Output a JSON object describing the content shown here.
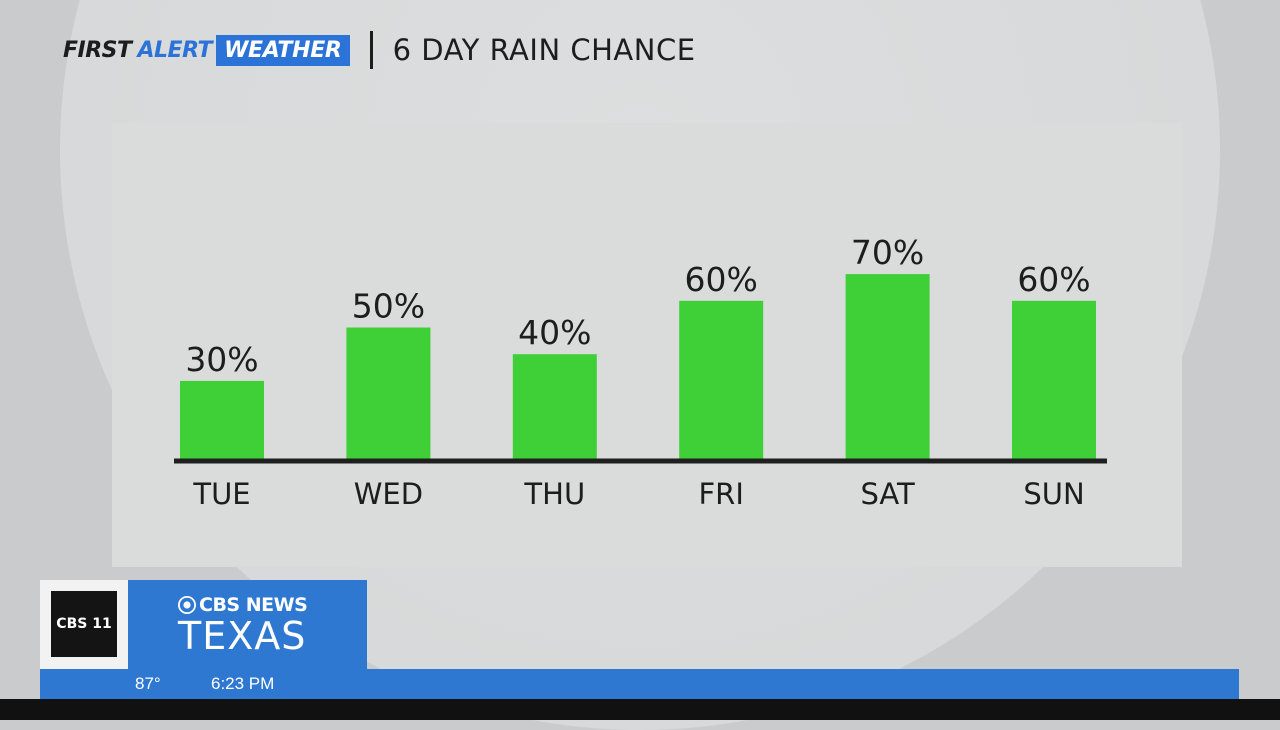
{
  "header": {
    "brand_first": "FIRST",
    "brand_alert": "ALERT",
    "brand_weather": "WEATHER",
    "title": "6 DAY RAIN CHANCE"
  },
  "colors": {
    "bar": "#3fcf36",
    "axis": "#1f1f1f",
    "text": "#1d1d1d",
    "brand_blue": "#2b73d6",
    "ticker_blue": "#2e78d2"
  },
  "chart_data": {
    "type": "bar",
    "title": "6 DAY RAIN CHANCE",
    "categories": [
      "TUE",
      "WED",
      "THU",
      "FRI",
      "SAT",
      "SUN"
    ],
    "values": [
      30,
      50,
      40,
      60,
      70,
      60
    ],
    "value_labels": [
      "30%",
      "50%",
      "40%",
      "60%",
      "70%",
      "60%"
    ],
    "ylim": [
      0,
      100
    ],
    "grid": false,
    "legend": "none"
  },
  "station": {
    "logo_text": "CBS 11",
    "network_top": "CBS NEWS",
    "network_bottom": "TEXAS"
  },
  "ticker": {
    "temperature": "87°",
    "time": "6:23 PM"
  }
}
